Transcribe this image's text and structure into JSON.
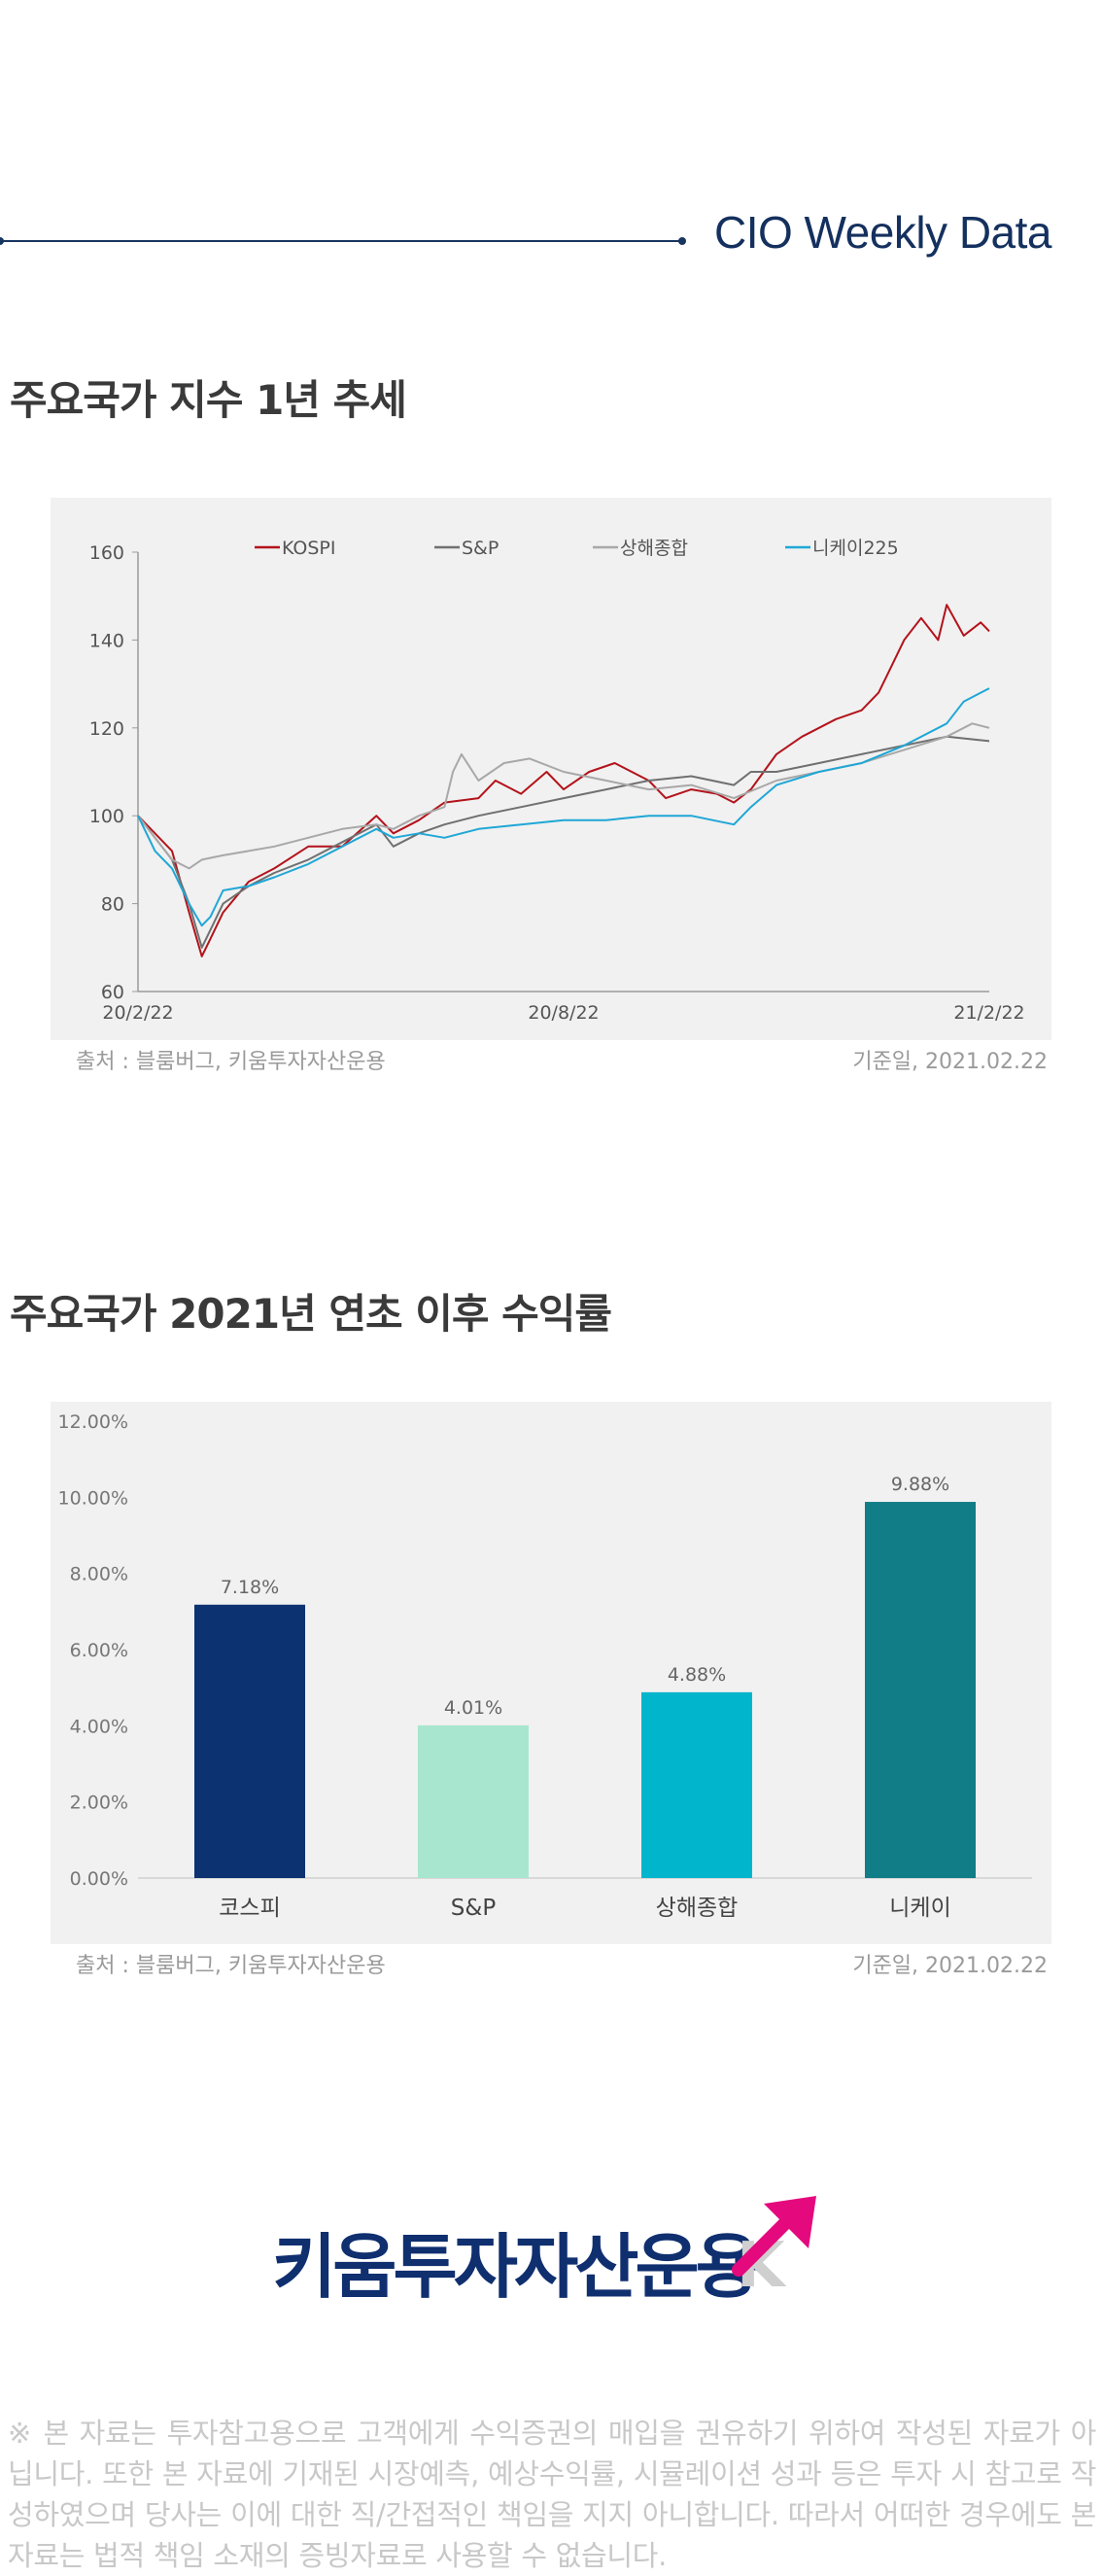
{
  "header": {
    "title": "CIO Weekly Data"
  },
  "section1": {
    "title": "주요국가 지수 1년 추세"
  },
  "section2": {
    "title": "주요국가 2021년 연초 이후 수익률"
  },
  "chart1_footer": {
    "source": "출처 : 블룸버그, 키움투자자산운용",
    "date": "기준일, 2021.02.22"
  },
  "chart2_footer": {
    "source": "출처 : 블룸버그, 키움투자자산운용",
    "date": "기준일, 2021.02.22"
  },
  "logo": {
    "text": "키움투자자산운용",
    "mark_letter": "K"
  },
  "disclaimer": "※ 본 자료는 투자참고용으로 고객에게 수익증권의 매입을 권유하기 위하여 작성된 자료가 아닙니다. 또한 본 자료에 기재된 시장예측, 예상수익률, 시뮬레이션 성과 등은 투자 시 참고로 작성하였으며 당사는 이에 대한 직/간접적인 책임을 지지 아니합니다. 따라서 어떠한 경우에도 본 자료는 법적 책임 소재의 증빙자료로 사용할 수 없습니다.",
  "chart_data": [
    {
      "type": "line",
      "x_tick_labels": [
        "20/2/22",
        "20/8/22",
        "21/2/22"
      ],
      "x_range": [
        "2020-02-22",
        "2021-02-22"
      ],
      "ylim": [
        60,
        160
      ],
      "y_ticks": [
        60,
        80,
        100,
        120,
        140,
        160
      ],
      "legend_position": "top",
      "series": [
        {
          "name": "KOSPI",
          "color": "#b3131b",
          "x": [
            0,
            0.02,
            0.04,
            0.06,
            0.075,
            0.085,
            0.1,
            0.13,
            0.16,
            0.2,
            0.24,
            0.28,
            0.3,
            0.33,
            0.36,
            0.4,
            0.42,
            0.45,
            0.48,
            0.5,
            0.53,
            0.56,
            0.6,
            0.62,
            0.65,
            0.68,
            0.7,
            0.72,
            0.75,
            0.78,
            0.8,
            0.82,
            0.85,
            0.87,
            0.88,
            0.9,
            0.92,
            0.94,
            0.95,
            0.97,
            0.99,
            1.0
          ],
          "y": [
            100,
            96,
            92,
            78,
            68,
            72,
            78,
            85,
            88,
            93,
            93,
            100,
            96,
            99,
            103,
            104,
            108,
            105,
            110,
            106,
            110,
            112,
            108,
            104,
            106,
            105,
            103,
            106,
            114,
            118,
            120,
            122,
            124,
            128,
            132,
            140,
            145,
            140,
            148,
            141,
            144,
            142
          ]
        },
        {
          "name": "S&P",
          "color": "#707070",
          "x": [
            0,
            0.02,
            0.04,
            0.06,
            0.075,
            0.085,
            0.1,
            0.13,
            0.16,
            0.2,
            0.24,
            0.28,
            0.3,
            0.33,
            0.36,
            0.4,
            0.45,
            0.5,
            0.55,
            0.6,
            0.65,
            0.7,
            0.72,
            0.75,
            0.8,
            0.85,
            0.9,
            0.95,
            1.0
          ],
          "y": [
            100,
            95,
            90,
            80,
            70,
            74,
            80,
            84,
            87,
            90,
            94,
            98,
            93,
            96,
            98,
            100,
            102,
            104,
            106,
            108,
            109,
            107,
            110,
            110,
            112,
            114,
            116,
            118,
            117
          ]
        },
        {
          "name": "상해종합",
          "color": "#a8a8a8",
          "x": [
            0,
            0.02,
            0.04,
            0.06,
            0.075,
            0.1,
            0.13,
            0.16,
            0.2,
            0.24,
            0.28,
            0.3,
            0.33,
            0.36,
            0.37,
            0.38,
            0.4,
            0.43,
            0.46,
            0.5,
            0.55,
            0.6,
            0.65,
            0.7,
            0.75,
            0.8,
            0.85,
            0.9,
            0.95,
            0.98,
            1.0
          ],
          "y": [
            100,
            95,
            90,
            88,
            90,
            91,
            92,
            93,
            95,
            97,
            98,
            97,
            100,
            102,
            110,
            114,
            108,
            112,
            113,
            110,
            108,
            106,
            107,
            104,
            108,
            110,
            112,
            115,
            118,
            121,
            120
          ]
        },
        {
          "name": "니케이225",
          "color": "#1fa7d6",
          "x": [
            0,
            0.02,
            0.04,
            0.06,
            0.075,
            0.085,
            0.1,
            0.13,
            0.16,
            0.2,
            0.24,
            0.28,
            0.3,
            0.33,
            0.36,
            0.4,
            0.45,
            0.5,
            0.55,
            0.6,
            0.65,
            0.7,
            0.72,
            0.75,
            0.8,
            0.85,
            0.9,
            0.95,
            0.97,
            0.99,
            1.0
          ],
          "y": [
            100,
            92,
            88,
            80,
            75,
            77,
            83,
            84,
            86,
            89,
            93,
            97,
            95,
            96,
            95,
            97,
            98,
            99,
            99,
            100,
            100,
            98,
            102,
            107,
            110,
            112,
            116,
            121,
            126,
            128,
            129
          ]
        }
      ]
    },
    {
      "type": "bar",
      "categories": [
        "코스피",
        "S&P",
        "상해종합",
        "니케이"
      ],
      "values": [
        7.18,
        4.01,
        4.88,
        9.88
      ],
      "value_labels": [
        "7.18%",
        "4.01%",
        "4.88%",
        "9.88%"
      ],
      "colors": [
        "#0d3272",
        "#a8e6cf",
        "#00b5cc",
        "#117d87"
      ],
      "ylim": [
        0,
        12
      ],
      "y_ticks": [
        0,
        2,
        4,
        6,
        8,
        10,
        12
      ],
      "y_tick_labels": [
        "0.00%",
        "2.00%",
        "4.00%",
        "6.00%",
        "8.00%",
        "10.00%",
        "12.00%"
      ]
    }
  ]
}
